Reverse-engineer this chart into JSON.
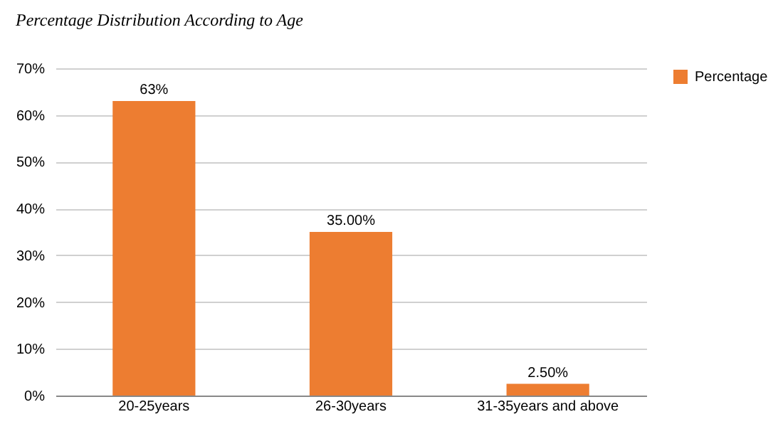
{
  "chart_data": {
    "type": "bar",
    "title": "Percentage Distribution According to Age",
    "categories": [
      "20-25years",
      "26-30years",
      "31-35years and above"
    ],
    "series": [
      {
        "name": "Percentage",
        "color": "#ed7d31",
        "values": [
          63,
          35,
          2.5
        ],
        "value_labels": [
          "63%",
          "35.00%",
          "2.50%"
        ]
      }
    ],
    "ylim": [
      0,
      70
    ],
    "yticks": [
      {
        "value": 0,
        "label": "0%"
      },
      {
        "value": 10,
        "label": "10%"
      },
      {
        "value": 20,
        "label": "20%"
      },
      {
        "value": 30,
        "label": "30%"
      },
      {
        "value": 40,
        "label": "40%"
      },
      {
        "value": 50,
        "label": "50%"
      },
      {
        "value": 60,
        "label": "60%"
      },
      {
        "value": 70,
        "label": "70%"
      }
    ],
    "grid": "y",
    "legend": "right"
  }
}
